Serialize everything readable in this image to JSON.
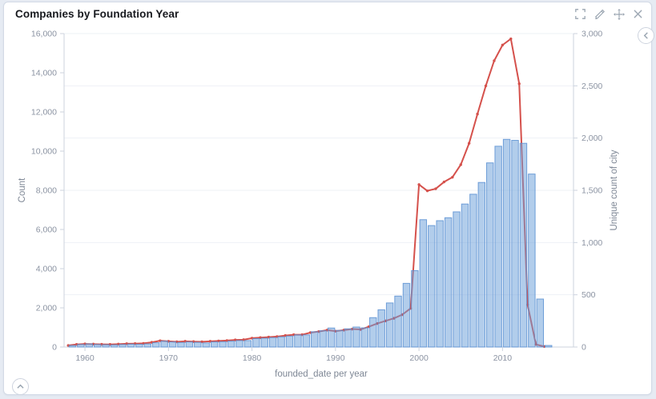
{
  "panel": {
    "title": "Companies by Foundation Year",
    "toolbar_icons": [
      "fullscreen-icon",
      "edit-icon",
      "move-icon",
      "close-icon"
    ],
    "right_toggle_icon": "chevron-left-circle-icon",
    "bottom_toggle_icon": "chevron-up-circle-icon"
  },
  "colors": {
    "bar_fill": "#6b9fd8",
    "bar_stroke": "#5a91d2",
    "line": "#d5514c",
    "grid": "#eef1f6",
    "axis": "#ccd3de",
    "tick_text": "#8b93a2",
    "panel_border": "#d3dae6",
    "page_bg": "#e6ebf3",
    "icon_gray": "#9aa5b1"
  },
  "chart_data": {
    "type": "bar",
    "title": "Companies by Foundation Year",
    "xlabel": "founded_date per year",
    "x_ticks": [
      1960,
      1970,
      1980,
      1990,
      2000,
      2010
    ],
    "x_range": [
      1957.5,
      2018.5
    ],
    "grid": "horizontal",
    "legend": "none",
    "left_axis": {
      "label": "Count",
      "min": 0,
      "max": 16000,
      "tick_step": 2000
    },
    "right_axis": {
      "label": "Unique count of city",
      "min": 0,
      "max": 3000,
      "tick_step": 500
    },
    "x": [
      1958,
      1959,
      1960,
      1961,
      1962,
      1963,
      1964,
      1965,
      1966,
      1967,
      1968,
      1969,
      1970,
      1971,
      1972,
      1973,
      1974,
      1975,
      1976,
      1977,
      1978,
      1979,
      1980,
      1981,
      1982,
      1983,
      1984,
      1985,
      1986,
      1987,
      1988,
      1989,
      1990,
      1991,
      1992,
      1993,
      1994,
      1995,
      1996,
      1997,
      1998,
      1999,
      2000,
      2001,
      2002,
      2003,
      2004,
      2005,
      2006,
      2007,
      2008,
      2009,
      2010,
      2011,
      2012,
      2013,
      2014,
      2015
    ],
    "series": [
      {
        "name": "Count",
        "type": "bar",
        "axis": "left",
        "values": [
          80,
          130,
          160,
          130,
          120,
          110,
          130,
          150,
          140,
          160,
          220,
          300,
          260,
          230,
          260,
          240,
          210,
          260,
          270,
          300,
          330,
          330,
          430,
          450,
          480,
          520,
          560,
          620,
          620,
          780,
          830,
          970,
          850,
          930,
          1020,
          980,
          1500,
          1900,
          2250,
          2600,
          3250,
          3900,
          6500,
          6200,
          6450,
          6600,
          6900,
          7300,
          7800,
          8400,
          9400,
          10250,
          10600,
          10550,
          10400,
          8830,
          2450,
          80
        ]
      },
      {
        "name": "Unique count of city",
        "type": "line",
        "axis": "right",
        "values": [
          15,
          25,
          30,
          28,
          26,
          25,
          28,
          32,
          33,
          35,
          45,
          60,
          55,
          50,
          55,
          52,
          50,
          55,
          58,
          62,
          68,
          70,
          85,
          90,
          95,
          100,
          110,
          118,
          118,
          138,
          148,
          162,
          152,
          162,
          172,
          168,
          195,
          225,
          250,
          275,
          310,
          370,
          1555,
          1495,
          1515,
          1580,
          1625,
          1745,
          1950,
          2230,
          2500,
          2740,
          2890,
          2950,
          2520,
          405,
          25,
          5
        ]
      }
    ]
  }
}
